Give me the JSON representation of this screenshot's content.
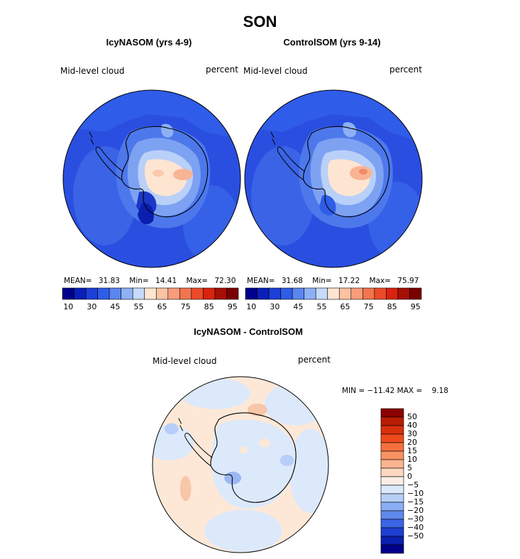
{
  "figure": {
    "title": "SON",
    "panels": [
      {
        "id": "icy",
        "title": "IcyNASOM (yrs 4-9)",
        "variable": "Mid-level cloud",
        "units": "percent",
        "mean_label": "MEAN=",
        "mean": "31.83",
        "min_label": "Min=",
        "min": "14.41",
        "max_label": "Max=",
        "max": "72.30"
      },
      {
        "id": "control",
        "title": "ControlSOM (yrs 9-14)",
        "variable": "Mid-level cloud",
        "units": "percent",
        "mean_label": "MEAN=",
        "mean": "31.68",
        "min_label": "Min=",
        "min": "17.22",
        "max_label": "Max=",
        "max": "75.97"
      }
    ],
    "diff_panel": {
      "title": "IcyNASOM - ControlSOM",
      "variable": "Mid-level cloud",
      "units": "percent",
      "minmax_text": "MIN = −11.42 MAX =    9.18"
    }
  },
  "chart_data": [
    {
      "type": "heatmap",
      "projection": "south-polar-stereographic",
      "panel": "IcyNASOM (yrs 4-9)",
      "colorbar": {
        "orientation": "horizontal",
        "colors": [
          "#00008b",
          "#0a1fb8",
          "#1e3fd8",
          "#2f5ce8",
          "#5b86f0",
          "#8eb0f5",
          "#c6dbfb",
          "#fde5d2",
          "#fbc2a4",
          "#f79d7c",
          "#f2754f",
          "#ec4b2a",
          "#d9230f",
          "#a70f06",
          "#7a0000"
        ],
        "tick_labels": [
          "10",
          "30",
          "45",
          "55",
          "65",
          "75",
          "85",
          "95"
        ]
      }
    },
    {
      "type": "heatmap",
      "projection": "south-polar-stereographic",
      "panel": "ControlSOM (yrs 9-14)",
      "colorbar": {
        "orientation": "horizontal",
        "colors": [
          "#00008b",
          "#0a1fb8",
          "#1e3fd8",
          "#2f5ce8",
          "#5b86f0",
          "#8eb0f5",
          "#c6dbfb",
          "#fde5d2",
          "#fbc2a4",
          "#f79d7c",
          "#f2754f",
          "#ec4b2a",
          "#d9230f",
          "#a70f06",
          "#7a0000"
        ],
        "tick_labels": [
          "10",
          "30",
          "45",
          "55",
          "65",
          "75",
          "85",
          "95"
        ]
      }
    },
    {
      "type": "heatmap",
      "projection": "south-polar-stereographic",
      "panel": "IcyNASOM - ControlSOM",
      "colorbar": {
        "orientation": "vertical",
        "colors_top_to_bottom": [
          "#8b0000",
          "#b81c05",
          "#d9300e",
          "#ee4a1c",
          "#f5703e",
          "#f89264",
          "#fbb48f",
          "#fdd8c0",
          "#fbeee6",
          "#dce9fb",
          "#b7cff8",
          "#8aaef3",
          "#5f89ec",
          "#3a65e4",
          "#1f3fd2",
          "#0b1fb0",
          "#00008b"
        ],
        "tick_labels_top_to_bottom": [
          "50",
          "40",
          "30",
          "20",
          "15",
          "10",
          "5",
          "0",
          "−5",
          "−10",
          "−15",
          "−20",
          "−30",
          "−40",
          "−50"
        ]
      }
    }
  ]
}
